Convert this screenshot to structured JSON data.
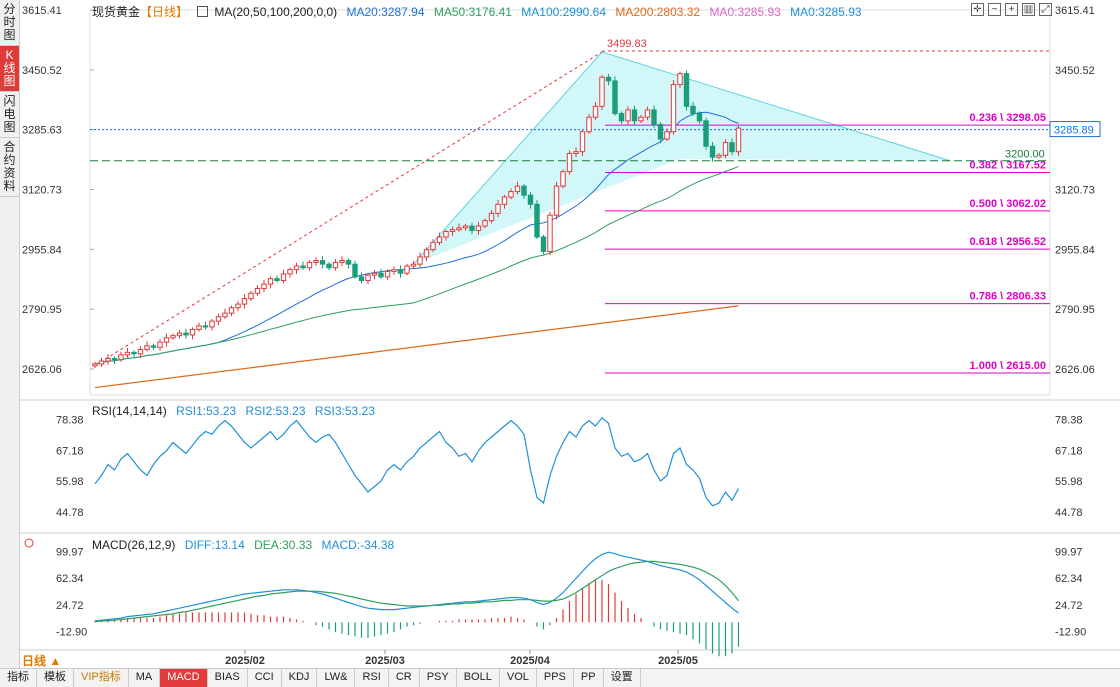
{
  "sidebar": {
    "tabs": [
      {
        "label": "分时图",
        "active": false
      },
      {
        "label": "K线图",
        "active": true
      },
      {
        "label": "闪电图",
        "active": false
      },
      {
        "label": "合约资料",
        "active": false
      }
    ]
  },
  "header": {
    "title": "现货黄金",
    "period": "【日线】",
    "ma_label": "MA(20,50,100,200,0,0)",
    "ma20": "MA20:3287.94",
    "ma50": "MA50:3176.41",
    "ma100": "MA100:2990.64",
    "ma200": "MA200:2803.32",
    "ma0a": "MA0:3285.93",
    "ma0b": "MA0:3285.93"
  },
  "rsi_panel": {
    "title": "RSI(14,14,14)",
    "rsi1": "RSI1:53.23",
    "rsi2": "RSI2:53.23",
    "rsi3": "RSI3:53.23",
    "ticks": [
      "78.38",
      "67.18",
      "55.98",
      "44.78"
    ]
  },
  "macd_panel": {
    "title": "MACD(26,12,9)",
    "diff": "DIFF:13.14",
    "dea": "DEA:30.33",
    "macd": "MACD:-34.38",
    "ticks": [
      "99.97",
      "62.34",
      "24.72",
      "-12.90"
    ]
  },
  "colors": {
    "up": "#e03a3a",
    "down": "#1a9e7a",
    "ma20": "#1e6fd9",
    "ma50": "#2f9e5e",
    "ma100": "#1e90d9",
    "ma200": "#e06a1a",
    "ma0": "#d966c8",
    "fib": "#e000c8",
    "triangle": "#bff3f7",
    "rsi": "#1e90d9",
    "diff": "#1e90d9",
    "dea": "#2f9e5e"
  },
  "period_selector": "日线",
  "bottom_toolbar": [
    "指标",
    "模板",
    "VIP指标",
    "MA",
    "MACD",
    "BIAS",
    "CCI",
    "KDJ",
    "LW&",
    "RSI",
    "CR",
    "PSY",
    "BOLL",
    "VOL",
    "PPS",
    "PP",
    "设置"
  ],
  "chart_data": {
    "type": "candlestick",
    "price_axis_ticks": [
      "3615.41",
      "3450.52",
      "3285.63",
      "3120.73",
      "2955.84",
      "2790.95",
      "2626.06"
    ],
    "ylim": [
      2560,
      3615.41
    ],
    "x_labels": [
      "2025/02",
      "2025/03",
      "2025/04",
      "2025/05"
    ],
    "current_price": "3285.89",
    "high_label": "3499.83",
    "support_label": "3200.00",
    "fib_levels": [
      {
        "label": "0.236 \\ 3298.05",
        "value": 3298.05
      },
      {
        "label": "0.382 \\ 3167.52",
        "value": 3167.52
      },
      {
        "label": "0.500 \\ 3062.02",
        "value": 3062.02
      },
      {
        "label": "0.618 \\ 2956.52",
        "value": 2956.52
      },
      {
        "label": "0.786 \\ 2806.33",
        "value": 2806.33
      },
      {
        "label": "1.000 \\ 2615.00",
        "value": 2615.0
      }
    ],
    "candles_close": [
      2640,
      2648,
      2655,
      2652,
      2665,
      2672,
      2668,
      2680,
      2690,
      2686,
      2700,
      2712,
      2718,
      2725,
      2720,
      2735,
      2745,
      2742,
      2758,
      2770,
      2780,
      2795,
      2805,
      2820,
      2835,
      2848,
      2860,
      2875,
      2870,
      2888,
      2900,
      2910,
      2905,
      2920,
      2925,
      2915,
      2905,
      2920,
      2925,
      2915,
      2880,
      2870,
      2885,
      2890,
      2880,
      2895,
      2900,
      2890,
      2910,
      2915,
      2935,
      2955,
      2975,
      2990,
      3005,
      3010,
      3015,
      3020,
      3008,
      3020,
      3035,
      3055,
      3080,
      3100,
      3115,
      3130,
      3105,
      3080,
      2990,
      2950,
      3050,
      3130,
      3170,
      3220,
      3225,
      3280,
      3320,
      3350,
      3430,
      3420,
      3330,
      3310,
      3340,
      3310,
      3320,
      3340,
      3300,
      3260,
      3280,
      3410,
      3440,
      3350,
      3330,
      3310,
      3240,
      3210,
      3215,
      3250,
      3225,
      3290
    ],
    "rsi_values": [
      55,
      58,
      62,
      60,
      64,
      66,
      63,
      60,
      58,
      62,
      65,
      67,
      70,
      68,
      66,
      69,
      72,
      74,
      73,
      76,
      78,
      76,
      73,
      70,
      68,
      70,
      72,
      74,
      71,
      73,
      76,
      78,
      75,
      72,
      70,
      72,
      73,
      70,
      66,
      62,
      58,
      55,
      52,
      54,
      56,
      60,
      62,
      60,
      63,
      65,
      68,
      70,
      72,
      74,
      70,
      68,
      65,
      66,
      63,
      67,
      70,
      72,
      74,
      76,
      78,
      76,
      73,
      60,
      50,
      48,
      58,
      65,
      70,
      74,
      72,
      76,
      78,
      76,
      79,
      77,
      68,
      65,
      66,
      63,
      64,
      66,
      60,
      56,
      58,
      66,
      68,
      62,
      60,
      57,
      50,
      47,
      48,
      52,
      49,
      53.23
    ],
    "macd_diff": [
      2,
      3,
      4,
      5,
      6,
      8,
      9,
      10,
      11,
      12,
      14,
      16,
      18,
      20,
      22,
      24,
      26,
      28,
      30,
      32,
      34,
      36,
      38,
      40,
      41,
      42,
      43,
      44,
      45,
      46,
      46,
      46,
      45,
      44,
      42,
      40,
      37,
      34,
      31,
      28,
      25,
      22,
      20,
      19,
      18,
      18,
      18,
      19,
      20,
      21,
      22,
      23,
      24,
      25,
      26,
      27,
      28,
      29,
      29,
      30,
      31,
      32,
      33,
      34,
      35,
      35,
      34,
      32,
      28,
      25,
      28,
      34,
      42,
      52,
      62,
      72,
      82,
      90,
      96,
      99,
      97,
      94,
      92,
      90,
      88,
      86,
      83,
      80,
      78,
      76,
      74,
      71,
      66,
      60,
      52,
      44,
      36,
      28,
      20,
      13.14
    ],
    "macd_dea": [
      1,
      2,
      2,
      3,
      4,
      5,
      6,
      7,
      8,
      9,
      10,
      11,
      12,
      14,
      15,
      17,
      19,
      21,
      23,
      25,
      27,
      29,
      31,
      33,
      35,
      37,
      38,
      40,
      41,
      42,
      43,
      44,
      44,
      44,
      44,
      43,
      42,
      41,
      39,
      37,
      35,
      33,
      31,
      29,
      27,
      26,
      25,
      24,
      23,
      23,
      23,
      23,
      24,
      24,
      25,
      26,
      26,
      27,
      27,
      28,
      29,
      29,
      30,
      31,
      31,
      32,
      32,
      32,
      31,
      30,
      30,
      31,
      33,
      37,
      42,
      48,
      54,
      60,
      66,
      72,
      76,
      79,
      82,
      84,
      85,
      86,
      86,
      85,
      84,
      83,
      82,
      80,
      78,
      75,
      71,
      66,
      60,
      52,
      42,
      30.33
    ]
  }
}
